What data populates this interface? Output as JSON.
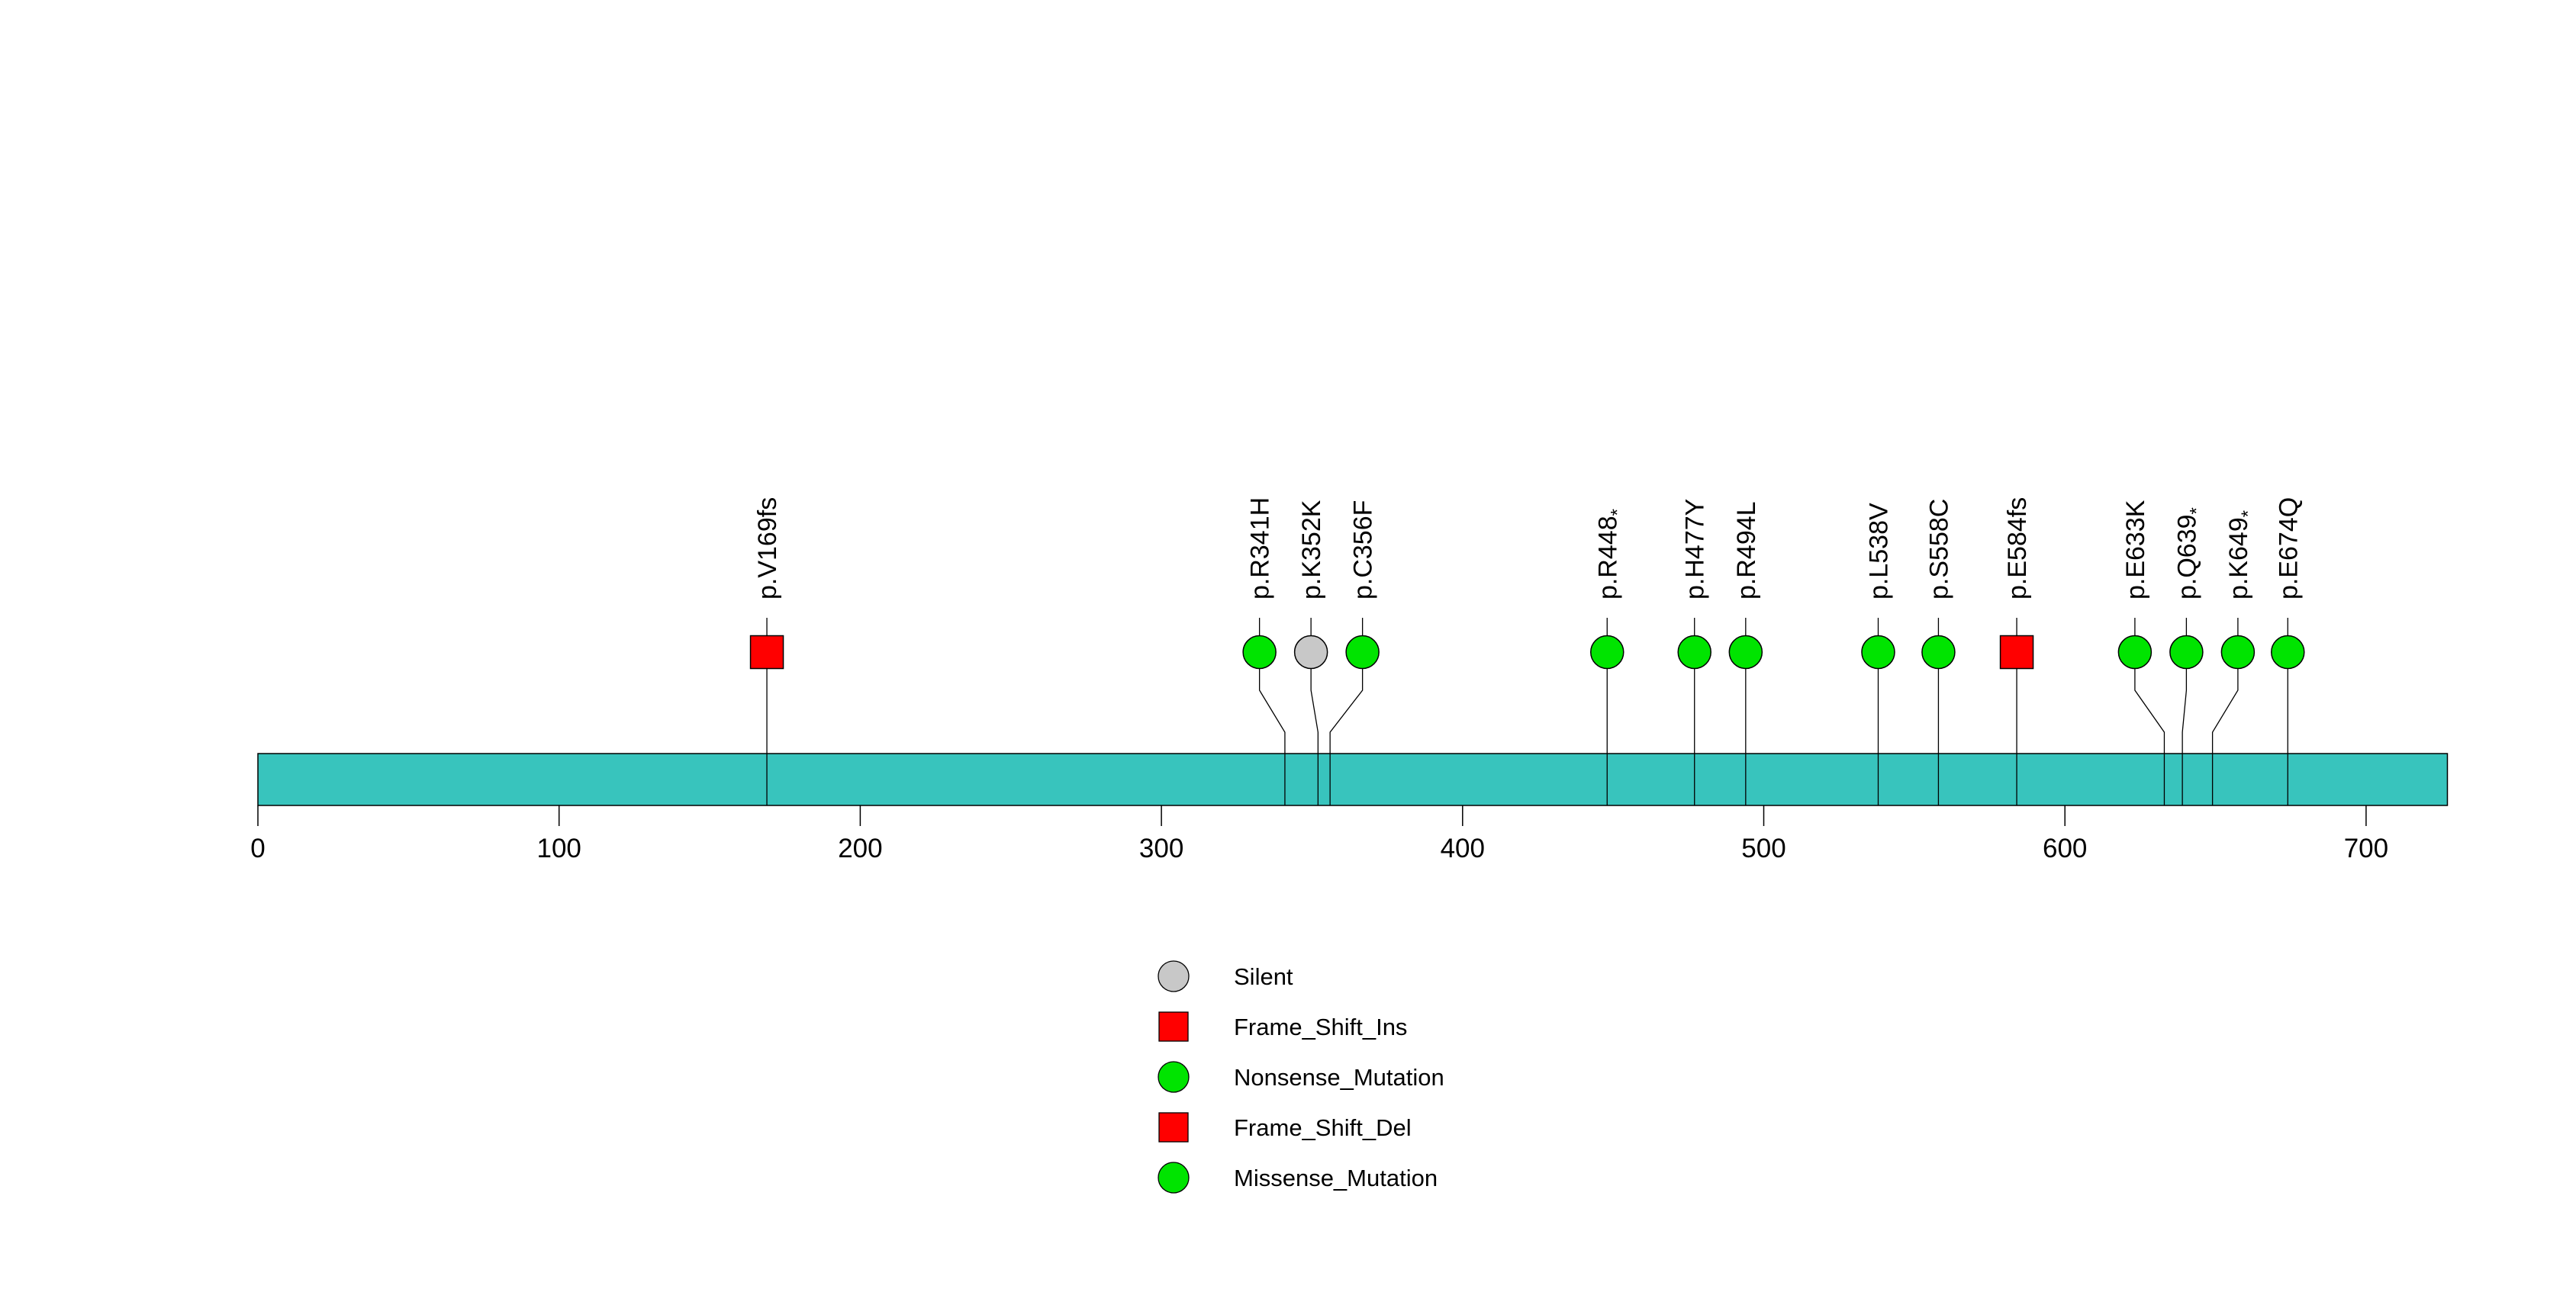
{
  "figure": {
    "background": "#FFFFFF"
  },
  "chart_data": {
    "type": "lollipop",
    "title": "",
    "xlabel": "",
    "ylabel": "",
    "axis": {
      "min": 0,
      "max": 727,
      "tick_interval": 100,
      "tick_labels": [
        "0",
        "100",
        "200",
        "300",
        "400",
        "500",
        "600",
        "700"
      ],
      "grid": false
    },
    "protein_bar": {
      "start": 0,
      "end": 727,
      "fill_color": "#38C4BD",
      "border_color": "#000000"
    },
    "mutations": [
      {
        "label": "p.V169fs",
        "position": 169,
        "shape": "square",
        "color": "#FF0000"
      },
      {
        "label": "p.R341H",
        "position": 341,
        "shape": "circle",
        "color": "#00E400"
      },
      {
        "label": "p.K352K",
        "position": 352,
        "shape": "circle",
        "color": "#C8C8C8"
      },
      {
        "label": "p.C356F",
        "position": 356,
        "shape": "circle",
        "color": "#00E400"
      },
      {
        "label": "p.R448*",
        "position": 448,
        "shape": "circle",
        "color": "#00E400"
      },
      {
        "label": "p.H477Y",
        "position": 477,
        "shape": "circle",
        "color": "#00E400"
      },
      {
        "label": "p.R494L",
        "position": 494,
        "shape": "circle",
        "color": "#00E400"
      },
      {
        "label": "p.L538V",
        "position": 538,
        "shape": "circle",
        "color": "#00E400"
      },
      {
        "label": "p.S558C",
        "position": 558,
        "shape": "circle",
        "color": "#00E400"
      },
      {
        "label": "p.E584fs",
        "position": 584,
        "shape": "square",
        "color": "#FF0000"
      },
      {
        "label": "p.E633K",
        "position": 633,
        "shape": "circle",
        "color": "#00E400"
      },
      {
        "label": "p.Q639*",
        "position": 639,
        "shape": "circle",
        "color": "#00E400"
      },
      {
        "label": "p.K649*",
        "position": 649,
        "shape": "circle",
        "color": "#00E400"
      },
      {
        "label": "p.E674Q",
        "position": 674,
        "shape": "circle",
        "color": "#00E400"
      }
    ],
    "legend": {
      "position": "bottom-center",
      "items": [
        {
          "label": "Silent",
          "shape": "circle",
          "color": "#C8C8C8"
        },
        {
          "label": "Frame_Shift_Ins",
          "shape": "square",
          "color": "#FF0000"
        },
        {
          "label": "Nonsense_Mutation",
          "shape": "circle",
          "color": "#00E400"
        },
        {
          "label": "Frame_Shift_Del",
          "shape": "square",
          "color": "#FF0000"
        },
        {
          "label": "Missense_Mutation",
          "shape": "circle",
          "color": "#00E400"
        }
      ]
    }
  }
}
